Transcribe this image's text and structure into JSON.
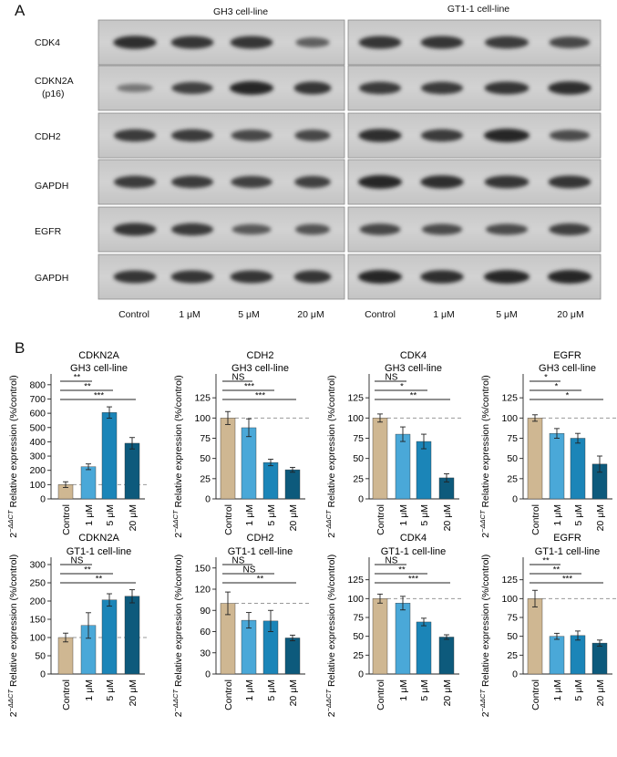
{
  "figure": {
    "panel_a": "A",
    "panel_b": "B"
  },
  "blot": {
    "cell_lines": [
      "GH3 cell-line",
      "GT1-1 cell-line"
    ],
    "rows": [
      {
        "label": "CDK4",
        "label2": ""
      },
      {
        "label": "CDKN2A",
        "label2": "(p16)"
      },
      {
        "label": "CDH2",
        "label2": ""
      },
      {
        "label": "GAPDH",
        "label2": ""
      },
      {
        "label": "EGFR",
        "label2": ""
      },
      {
        "label": "GAPDH",
        "label2": ""
      }
    ],
    "lane_labels": [
      "Control",
      "1 μM",
      "5 μM",
      "20 μM",
      "Control",
      "1 μM",
      "5 μM",
      "20 μM"
    ],
    "band_intensity": [
      [
        [
          0.95,
          0.9,
          0.9,
          0.55
        ],
        [
          0.9,
          0.9,
          0.85,
          0.75
        ]
      ],
      [
        [
          0.35,
          0.8,
          1.0,
          0.9
        ],
        [
          0.85,
          0.85,
          0.9,
          0.95
        ]
      ],
      [
        [
          0.85,
          0.85,
          0.75,
          0.75
        ],
        [
          0.95,
          0.85,
          1.0,
          0.7
        ]
      ],
      [
        [
          0.85,
          0.85,
          0.8,
          0.8
        ],
        [
          1.0,
          0.95,
          0.9,
          0.9
        ]
      ],
      [
        [
          0.9,
          0.85,
          0.6,
          0.65
        ],
        [
          0.75,
          0.7,
          0.7,
          0.8
        ]
      ],
      [
        [
          0.9,
          0.9,
          0.9,
          0.9
        ],
        [
          1.0,
          0.95,
          1.0,
          1.0
        ]
      ]
    ]
  },
  "colors": {
    "control": "#cfb792",
    "1uM": "#4aa8d8",
    "5uM": "#1b85b8",
    "20uM": "#0d5a7c",
    "dashed": "#999999"
  },
  "ylabel_prefix": "2",
  "ylabel_sup": "−ΔΔCT",
  "ylabel_rest": " Relative expression (%/control)",
  "chart_data": [
    {
      "type": "bar",
      "title": "CDKN2A",
      "subtitle": "GH3 cell-line",
      "categories": [
        "Control",
        "1 μM",
        "5 μM",
        "20 μM"
      ],
      "values": [
        100,
        225,
        605,
        390
      ],
      "errors": [
        20,
        20,
        40,
        40
      ],
      "ylim": [
        0,
        850
      ],
      "yticks": [
        0,
        100,
        200,
        300,
        400,
        500,
        600,
        700,
        800
      ],
      "sig": [
        {
          "to": 1,
          "label": "**"
        },
        {
          "to": 2,
          "label": "**"
        },
        {
          "to": 3,
          "label": "***"
        }
      ]
    },
    {
      "type": "bar",
      "title": "CDH2",
      "subtitle": "GH3 cell-line",
      "categories": [
        "Control",
        "1 μM",
        "5 μM",
        "20 μM"
      ],
      "values": [
        100,
        88,
        45,
        36
      ],
      "errors": [
        8,
        11,
        4,
        3
      ],
      "ylim": [
        0,
        150
      ],
      "yticks": [
        0,
        25,
        50,
        75,
        100,
        125
      ],
      "sig": [
        {
          "to": 1,
          "label": "NS"
        },
        {
          "to": 2,
          "label": "***"
        },
        {
          "to": 3,
          "label": "***"
        }
      ]
    },
    {
      "type": "bar",
      "title": "CDK4",
      "subtitle": "GH3 cell-line",
      "categories": [
        "Control",
        "1 μM",
        "5 μM",
        "20 μM"
      ],
      "values": [
        100,
        80,
        71,
        26
      ],
      "errors": [
        5,
        9,
        9,
        5
      ],
      "ylim": [
        0,
        150
      ],
      "yticks": [
        0,
        25,
        50,
        75,
        100,
        125
      ],
      "sig": [
        {
          "to": 1,
          "label": "NS"
        },
        {
          "to": 2,
          "label": "*"
        },
        {
          "to": 3,
          "label": "**"
        }
      ]
    },
    {
      "type": "bar",
      "title": "EGFR",
      "subtitle": "GH3 cell-line",
      "categories": [
        "Control",
        "1 μM",
        "5 μM",
        "20 μM"
      ],
      "values": [
        100,
        81,
        75,
        43
      ],
      "errors": [
        4,
        6,
        6,
        10
      ],
      "ylim": [
        0,
        150
      ],
      "yticks": [
        0,
        25,
        50,
        75,
        100,
        125
      ],
      "sig": [
        {
          "to": 1,
          "label": "*"
        },
        {
          "to": 2,
          "label": "*"
        },
        {
          "to": 3,
          "label": "*"
        }
      ]
    },
    {
      "type": "bar",
      "title": "CDKN2A",
      "subtitle": "GT1-1 cell-line",
      "categories": [
        "Control",
        "1 μM",
        "5 μM",
        "20 μM"
      ],
      "values": [
        100,
        133,
        203,
        213
      ],
      "errors": [
        12,
        35,
        17,
        18
      ],
      "ylim": [
        0,
        310
      ],
      "yticks": [
        0,
        50,
        100,
        150,
        200,
        250,
        300
      ],
      "sig": [
        {
          "to": 1,
          "label": "NS"
        },
        {
          "to": 2,
          "label": "**"
        },
        {
          "to": 3,
          "label": "**"
        }
      ]
    },
    {
      "type": "bar",
      "title": "CDH2",
      "subtitle": "GT1-1 cell-line",
      "categories": [
        "Control",
        "1 μM",
        "5 μM",
        "20 μM"
      ],
      "values": [
        100,
        76,
        75,
        51
      ],
      "errors": [
        16,
        11,
        15,
        4
      ],
      "ylim": [
        0,
        160
      ],
      "yticks": [
        0,
        30,
        60,
        90,
        120,
        150
      ],
      "sig": [
        {
          "to": 1,
          "label": "NS"
        },
        {
          "to": 2,
          "label": "NS"
        },
        {
          "to": 3,
          "label": "**"
        }
      ]
    },
    {
      "type": "bar",
      "title": "CDK4",
      "subtitle": "GT1-1 cell-line",
      "categories": [
        "Control",
        "1 μM",
        "5 μM",
        "20 μM"
      ],
      "values": [
        100,
        94,
        69,
        49
      ],
      "errors": [
        6,
        9,
        5,
        3
      ],
      "ylim": [
        0,
        150
      ],
      "yticks": [
        0,
        25,
        50,
        75,
        100,
        125
      ],
      "sig": [
        {
          "to": 1,
          "label": "NS"
        },
        {
          "to": 2,
          "label": "**"
        },
        {
          "to": 3,
          "label": "***"
        }
      ]
    },
    {
      "type": "bar",
      "title": "EGFR",
      "subtitle": "GT1-1 cell-line",
      "categories": [
        "Control",
        "1 μM",
        "5 μM",
        "20 μM"
      ],
      "values": [
        100,
        50,
        51,
        41
      ],
      "errors": [
        11,
        4,
        6,
        4
      ],
      "ylim": [
        0,
        150
      ],
      "yticks": [
        0,
        25,
        50,
        75,
        100,
        125
      ],
      "sig": [
        {
          "to": 1,
          "label": "**"
        },
        {
          "to": 2,
          "label": "**"
        },
        {
          "to": 3,
          "label": "***"
        }
      ]
    }
  ]
}
